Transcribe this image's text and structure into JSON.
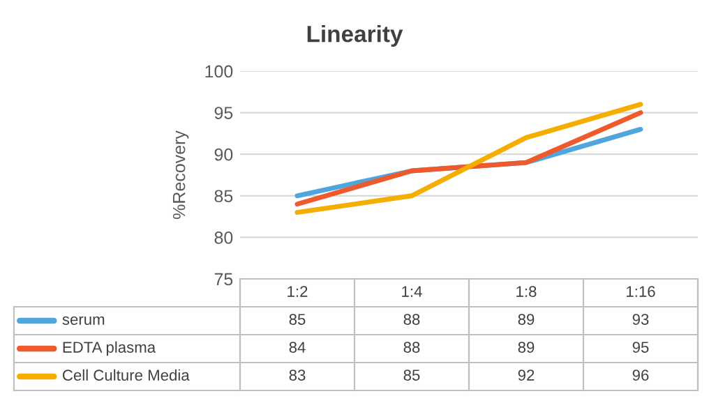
{
  "chart_data": {
    "type": "line",
    "title": "Linearity",
    "ylabel": "%Recovery",
    "categories": [
      "1:2",
      "1:4",
      "1:8",
      "1:16"
    ],
    "series": [
      {
        "name": "serum",
        "color": "#4ea6dc",
        "values": [
          85,
          88,
          89,
          93
        ]
      },
      {
        "name": "EDTA plasma",
        "color": "#ee5a2c",
        "values": [
          84,
          88,
          89,
          95
        ]
      },
      {
        "name": "Cell Culture Media",
        "color": "#f5ad00",
        "values": [
          83,
          85,
          92,
          96
        ]
      }
    ],
    "ylim": [
      75,
      100
    ],
    "yticks": [
      75,
      80,
      85,
      90,
      95,
      100
    ],
    "grid": "y",
    "legend": "bottom",
    "data_labels": true
  }
}
